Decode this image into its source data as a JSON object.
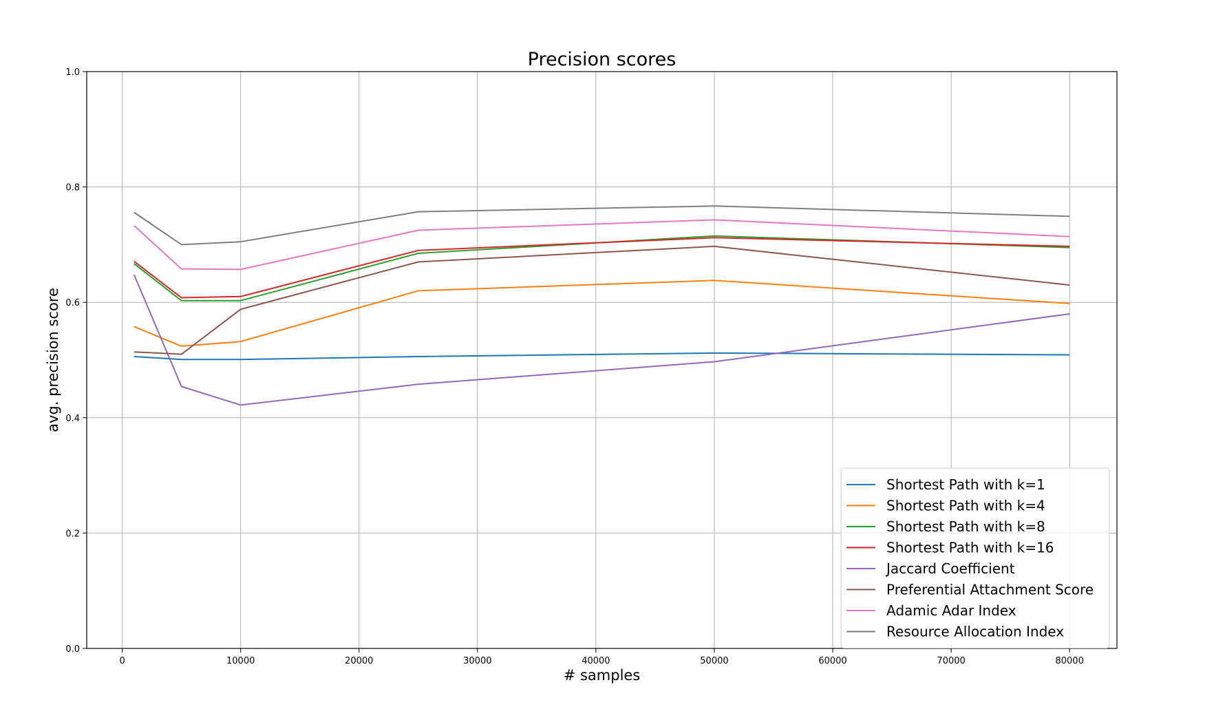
{
  "chart_data": {
    "type": "line",
    "title": "Precision scores",
    "xlabel": "# samples",
    "ylabel": "avg. precision score",
    "xlim": [
      -3000,
      84000
    ],
    "ylim": [
      0.0,
      1.0
    ],
    "x_ticks": [
      0,
      10000,
      20000,
      30000,
      40000,
      50000,
      60000,
      70000,
      80000
    ],
    "y_ticks": [
      "0.0",
      "0.2",
      "0.4",
      "0.6",
      "0.8",
      "1.0"
    ],
    "grid": true,
    "legend_position": "lower-right",
    "x": [
      1000,
      5000,
      10000,
      25000,
      50000,
      80000
    ],
    "series": [
      {
        "name": "Shortest Path with k=1",
        "color": "#1f77b4",
        "values": [
          0.506,
          0.501,
          0.501,
          0.506,
          0.512,
          0.509
        ]
      },
      {
        "name": "Shortest Path with k=4",
        "color": "#ff7f0e",
        "values": [
          0.558,
          0.524,
          0.532,
          0.62,
          0.638,
          0.598
        ]
      },
      {
        "name": "Shortest Path with k=8",
        "color": "#2ca02c",
        "values": [
          0.667,
          0.603,
          0.603,
          0.685,
          0.715,
          0.695
        ]
      },
      {
        "name": "Shortest Path with k=16",
        "color": "#d62728",
        "values": [
          0.671,
          0.608,
          0.61,
          0.69,
          0.712,
          0.697
        ]
      },
      {
        "name": "Jaccard Coefficient",
        "color": "#9467bd",
        "values": [
          0.648,
          0.454,
          0.422,
          0.458,
          0.497,
          0.58
        ]
      },
      {
        "name": "Preferential Attachment Score",
        "color": "#8c564b",
        "values": [
          0.514,
          0.51,
          0.588,
          0.67,
          0.697,
          0.63
        ]
      },
      {
        "name": "Adamic Adar Index",
        "color": "#e377c2",
        "values": [
          0.733,
          0.658,
          0.657,
          0.725,
          0.743,
          0.714
        ]
      },
      {
        "name": "Resource Allocation Index",
        "color": "#7f7f7f",
        "values": [
          0.756,
          0.7,
          0.705,
          0.757,
          0.767,
          0.749
        ]
      }
    ]
  }
}
